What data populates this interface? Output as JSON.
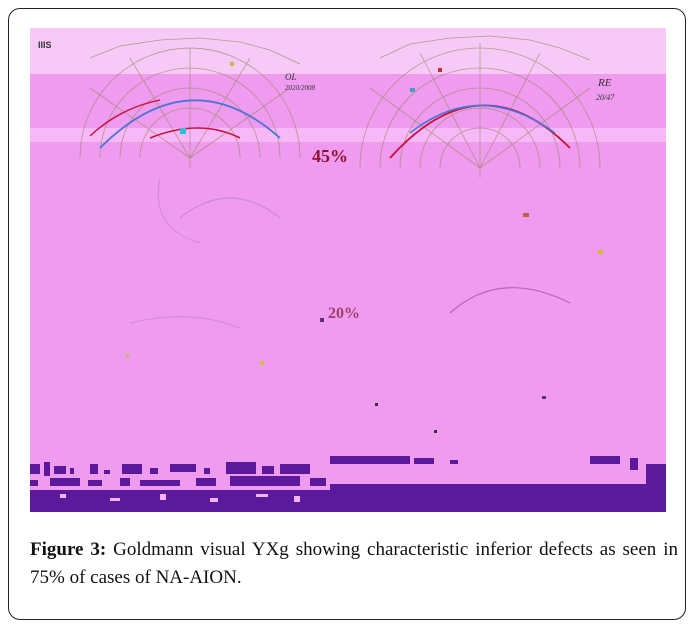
{
  "figure": {
    "chart_texts": {
      "header": "IIIS",
      "right_eye_label": "RE",
      "right_eye_sub": "20/47",
      "left_eye_label": "OL",
      "left_eye_sub": "2020/2008",
      "percent_top": "45%",
      "percent_bottom": "20%"
    },
    "colors": {
      "background": "#ef9bef",
      "band": "#f4b4f4",
      "noise": "#5b1a9c",
      "isopter_blue": "#4a74d8",
      "isopter_red": "#c8103a",
      "grid": "#7a5a3a"
    }
  },
  "caption": {
    "label": "Figure 3:",
    "text": " Goldmann visual  YXg showing characteristic inferior defects as seen in 75% of cases of NA-AION."
  }
}
